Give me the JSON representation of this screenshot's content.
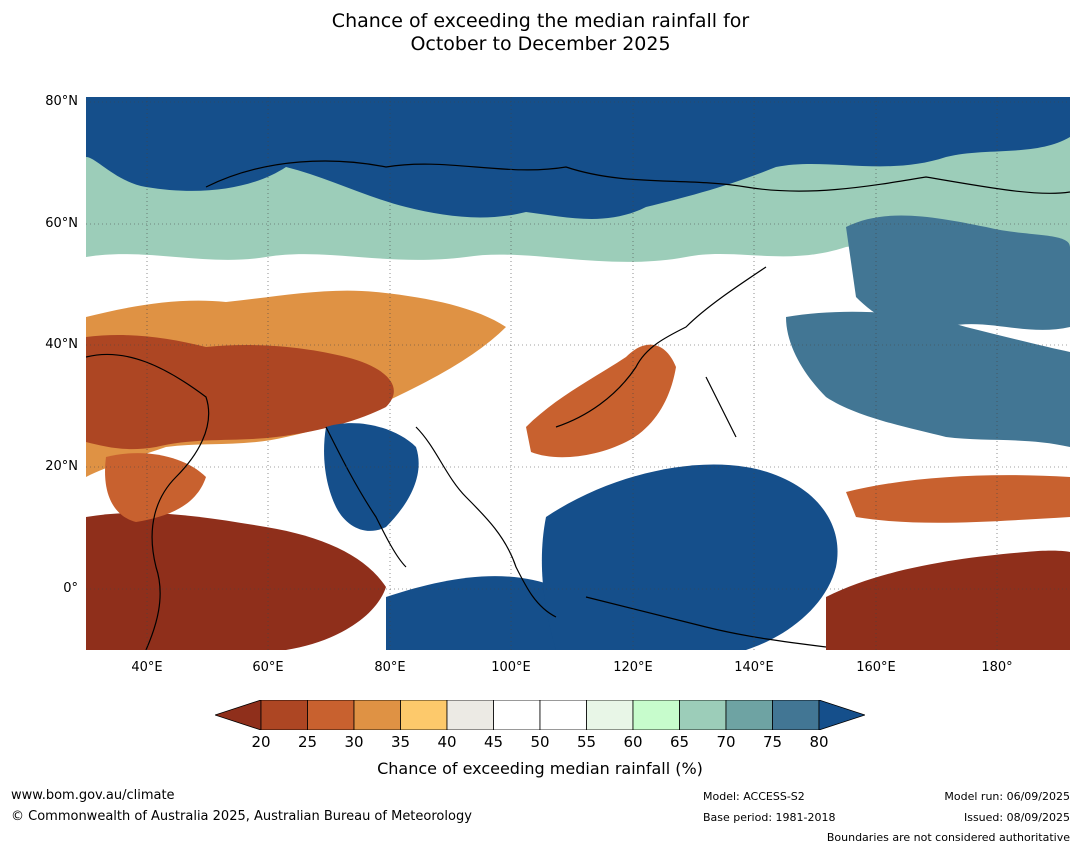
{
  "title": {
    "line1": "Chance of exceeding the median rainfall for",
    "line2": "October to December 2025"
  },
  "map": {
    "lat_labels": [
      "80°N",
      "60°N",
      "40°N",
      "20°N",
      "0°"
    ],
    "lon_labels": [
      "40°E",
      "60°E",
      "80°E",
      "100°E",
      "120°E",
      "140°E",
      "160°E",
      "180°"
    ],
    "extent": {
      "lon_min": 30,
      "lon_max": 192,
      "lat_min": -10,
      "lat_max": 80
    }
  },
  "legend": {
    "ticks": [
      "20",
      "25",
      "30",
      "35",
      "40",
      "45",
      "50",
      "55",
      "60",
      "65",
      "70",
      "75",
      "80"
    ],
    "colors": [
      "#8f2f1b",
      "#ad4623",
      "#c8612f",
      "#df9244",
      "#fdc96b",
      "#eceae4",
      "#ffffff",
      "#ffffff",
      "#e8f6e7",
      "#c7fccc",
      "#9ccdb9",
      "#6ea3a3",
      "#427694",
      "#154f8b"
    ],
    "label": "Chance of exceeding median rainfall (%)"
  },
  "footer": {
    "website": "www.bom.gov.au/climate",
    "copyright": "© Commonwealth of Australia 2025, Australian Bureau of Meteorology",
    "model": "Model: ACCESS-S2",
    "base_period": "Base period: 1981-2018",
    "model_run": "Model run: 06/09/2025",
    "issued": "Issued: 08/09/2025",
    "disclaimer": "Boundaries are not considered authoritative"
  }
}
